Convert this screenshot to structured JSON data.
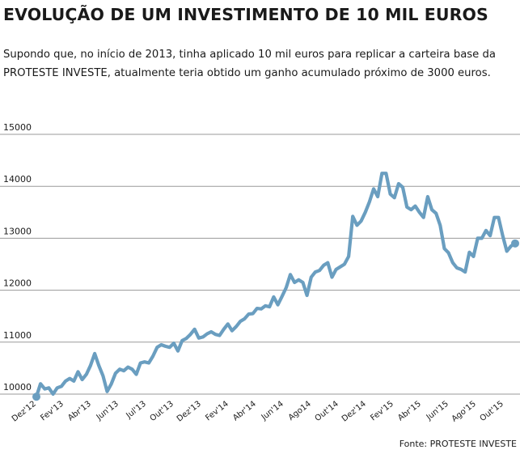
{
  "chart_data": {
    "type": "line",
    "title": "EVOLUÇÃO DE UM INVESTIMENTO DE 10 MIL EUROS",
    "subtitle": "Supondo que, no início de 2013, tinha aplicado 10 mil euros para replicar a carteira base da PROTESTE INVESTE, atualmente teria obtido um ganho acumulado próximo de 3000 euros.",
    "source": "Fonte: PROTESTE INVESTE",
    "xlabel": "",
    "ylabel": "",
    "ylim": [
      10000,
      15000
    ],
    "yticks": [
      "15000",
      "14000",
      "13000",
      "12000",
      "11000",
      "10000"
    ],
    "xticks": [
      "Dez'12",
      "Fev'13",
      "Abr'13",
      "Jun'13",
      "Jul'13",
      "Out'13",
      "Dez'13",
      "Fev'14",
      "Abr'14",
      "Jun'14",
      "Ago14",
      "Out'14",
      "Dez'14",
      "Fev'15",
      "Abr'15",
      "Jun'15",
      "Ago'15",
      "Out'15"
    ],
    "grid": "horizontal",
    "line_color": "#6a9ec0",
    "series": [
      {
        "values": [
          9950,
          10200,
          10100,
          10120,
          10000,
          10120,
          10150,
          10250,
          10300,
          10250,
          10430,
          10280,
          10380,
          10550,
          10780,
          10550,
          10350,
          10050,
          10200,
          10400,
          10480,
          10450,
          10520,
          10480,
          10380,
          10600,
          10620,
          10600,
          10730,
          10900,
          10950,
          10920,
          10900,
          10980,
          10830,
          11030,
          11070,
          11150,
          11250,
          11080,
          11100,
          11160,
          11200,
          11150,
          11130,
          11250,
          11350,
          11220,
          11300,
          11400,
          11450,
          11540,
          11550,
          11650,
          11640,
          11700,
          11680,
          11870,
          11720,
          11880,
          12050,
          12300,
          12150,
          12200,
          12150,
          11900,
          12250,
          12350,
          12380,
          12480,
          12530,
          12250,
          12400,
          12450,
          12500,
          12650,
          13420,
          13250,
          13330,
          13500,
          13700,
          13950,
          13800,
          14250,
          14250,
          13850,
          13780,
          14050,
          13980,
          13600,
          13550,
          13620,
          13500,
          13400,
          13800,
          13550,
          13480,
          13250,
          12800,
          12720,
          12530,
          12430,
          12400,
          12350,
          12730,
          12650,
          13000,
          13000,
          13150,
          13050,
          13400,
          13400,
          13050,
          12750,
          12850,
          12900
        ]
      }
    ]
  }
}
